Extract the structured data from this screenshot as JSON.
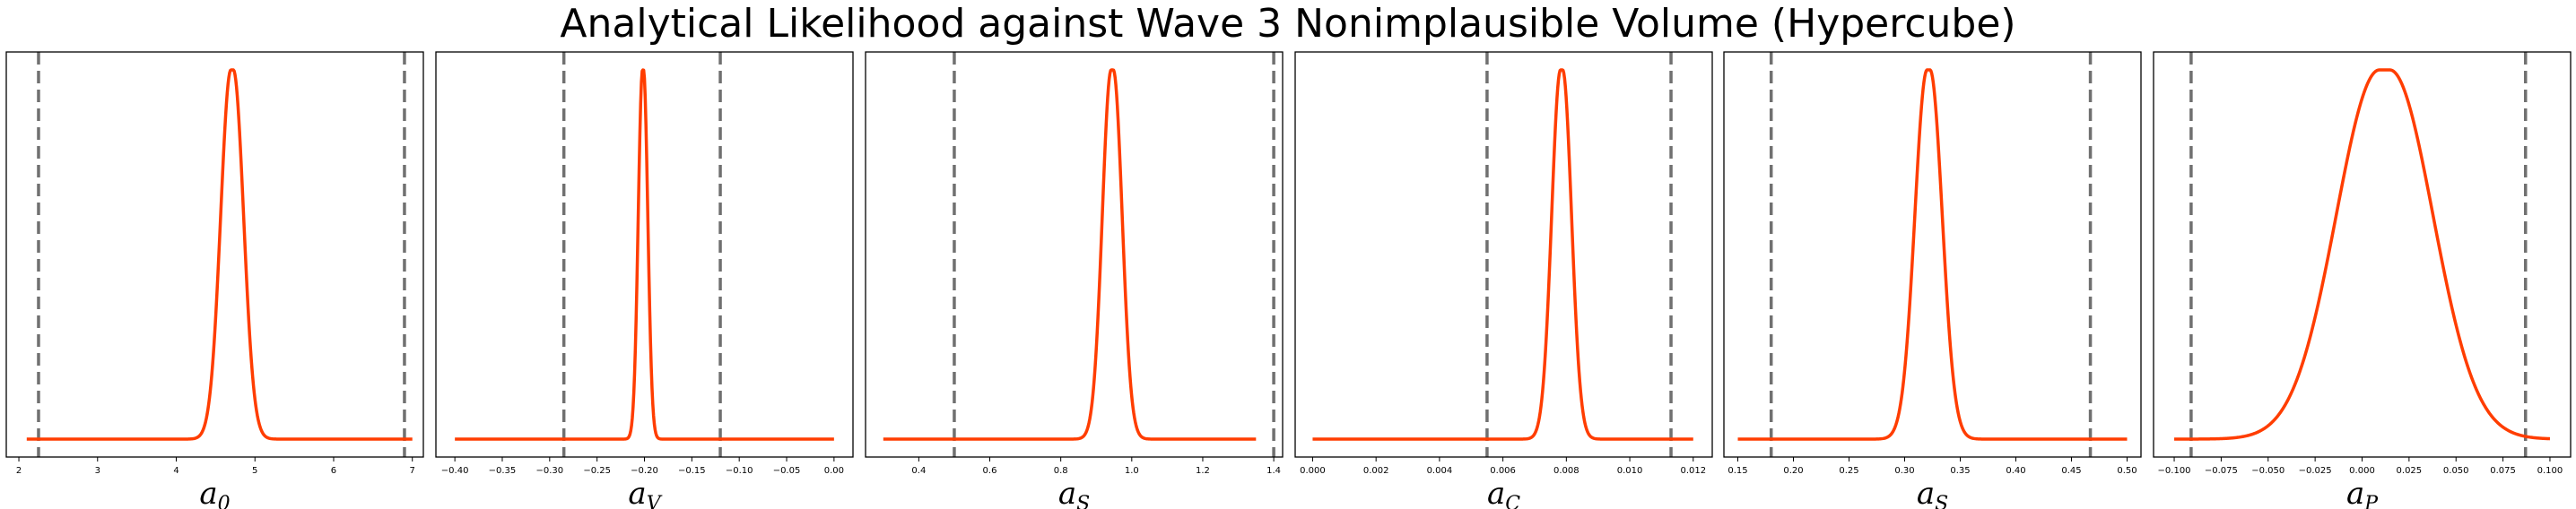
{
  "title": "Analytical Likelihood against Wave 3 Nonimplausible Volume (Hypercube)",
  "colors": {
    "curve": "#ff3d00",
    "bound": "#707070",
    "frame": "#000000"
  },
  "chart_data": [
    {
      "type": "line",
      "xlabel_base": "a",
      "xlabel_sub": "0",
      "xlim": [
        1.84,
        7.14
      ],
      "ticks": [
        2,
        3,
        4,
        5,
        6,
        7
      ],
      "tick_labels": [
        "2",
        "3",
        "4",
        "5",
        "6",
        "7"
      ],
      "bounds": [
        2.25,
        6.9
      ],
      "curve": {
        "shape": "gaussian",
        "x_range": [
          2.1,
          7.0
        ],
        "peak_x": 4.71,
        "width": 0.13,
        "peak_y": 1.0,
        "flat_top": true
      }
    },
    {
      "type": "line",
      "xlabel_base": "a",
      "xlabel_sub": "V",
      "xlim": [
        -0.42,
        0.02
      ],
      "ticks": [
        -0.4,
        -0.35,
        -0.3,
        -0.25,
        -0.2,
        -0.15,
        -0.1,
        -0.05,
        0.0
      ],
      "tick_labels": [
        "−0.40",
        "−0.35",
        "−0.30",
        "−0.25",
        "−0.20",
        "−0.15",
        "−0.10",
        "−0.05",
        "0.00"
      ],
      "bounds": [
        -0.285,
        -0.12
      ],
      "curve": {
        "shape": "gaussian",
        "x_range": [
          -0.4,
          0.0
        ],
        "peak_x": -0.2015,
        "width": 0.0045,
        "peak_y": 1.0,
        "flat_top": true
      }
    },
    {
      "type": "line",
      "xlabel_base": "a",
      "xlabel_sub": "S",
      "xlim": [
        0.25,
        1.425
      ],
      "ticks": [
        0.4,
        0.6,
        0.8,
        1.0,
        1.2,
        1.4
      ],
      "tick_labels": [
        "0.4",
        "0.6",
        "0.8",
        "1.0",
        "1.2",
        "1.4"
      ],
      "bounds": [
        0.5,
        1.4
      ],
      "curve": {
        "shape": "gaussian",
        "x_range": [
          0.3,
          1.35
        ],
        "peak_x": 0.945,
        "width": 0.025,
        "peak_y": 1.0,
        "flat_top": true
      }
    },
    {
      "type": "line",
      "xlabel_base": "a",
      "xlabel_sub": "C",
      "xlim": [
        -0.00055,
        0.0126
      ],
      "ticks": [
        0.0,
        0.002,
        0.004,
        0.006,
        0.008,
        0.01,
        0.012
      ],
      "tick_labels": [
        "0.000",
        "0.002",
        "0.004",
        "0.006",
        "0.008",
        "0.010",
        "0.012"
      ],
      "bounds": [
        0.0055,
        0.0113
      ],
      "curve": {
        "shape": "gaussian",
        "x_range": [
          0.0,
          0.012
        ],
        "peak_x": 0.00785,
        "width": 0.00028,
        "peak_y": 1.0,
        "flat_top": true
      }
    },
    {
      "type": "line",
      "xlabel_base": "a",
      "xlabel_sub": "S",
      "xlim": [
        0.1375,
        0.5125
      ],
      "ticks": [
        0.15,
        0.2,
        0.25,
        0.3,
        0.35,
        0.4,
        0.45,
        0.5
      ],
      "tick_labels": [
        "0.15",
        "0.20",
        "0.25",
        "0.30",
        "0.35",
        "0.40",
        "0.45",
        "0.50"
      ],
      "bounds": [
        0.18,
        0.467
      ],
      "curve": {
        "shape": "gaussian",
        "x_range": [
          0.15,
          0.5
        ],
        "peak_x": 0.3215,
        "width": 0.011,
        "peak_y": 1.0,
        "flat_top": true
      }
    },
    {
      "type": "line",
      "xlabel_base": "a",
      "xlabel_sub": "P",
      "xlim": [
        -0.111,
        0.111
      ],
      "ticks": [
        -0.1,
        -0.075,
        -0.05,
        -0.025,
        0.0,
        0.025,
        0.05,
        0.075,
        0.1
      ],
      "tick_labels": [
        "−0.100",
        "−0.075",
        "−0.050",
        "−0.025",
        "0.000",
        "0.025",
        "0.050",
        "0.075",
        "0.100"
      ],
      "bounds": [
        -0.091,
        0.087
      ],
      "curve": {
        "shape": "gaussian",
        "x_range": [
          -0.1,
          0.1
        ],
        "peak_x": 0.012,
        "width": 0.023,
        "peak_y": 1.0,
        "flat_top": true
      }
    }
  ]
}
